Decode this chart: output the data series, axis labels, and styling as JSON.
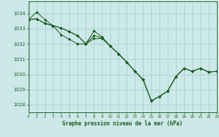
{
  "title": "Graphe pression niveau de la mer (hPa)",
  "bg_color": "#cce8e8",
  "grid_color": "#99cccc",
  "line_color": "#1a5c1a",
  "marker_color": "#1a5c1a",
  "x_ticks": [
    0,
    1,
    2,
    3,
    4,
    5,
    6,
    7,
    8,
    9,
    10,
    11,
    12,
    13,
    14,
    15,
    16,
    17,
    18,
    19,
    20,
    21,
    22,
    23
  ],
  "ylim": [
    1027.5,
    1034.8
  ],
  "xlim": [
    0,
    23
  ],
  "yticks": [
    1028,
    1029,
    1030,
    1031,
    1032,
    1033,
    1034
  ],
  "series1": [
    1033.6,
    1034.1,
    1033.6,
    1033.2,
    1032.6,
    1032.3,
    1032.0,
    1032.0,
    1032.55,
    1032.4,
    1031.85,
    1031.35,
    1030.8,
    1030.2,
    1029.65,
    1028.25,
    1028.55,
    1028.9,
    1029.85,
    1030.4,
    1030.2,
    1030.4,
    1030.15,
    1030.2
  ],
  "series2": [
    1033.6,
    1033.65,
    1033.35,
    1033.2,
    1033.05,
    1032.8,
    1032.55,
    1032.0,
    1032.85,
    1032.45,
    1031.85,
    1031.35,
    1030.8,
    1030.2,
    1029.65,
    1028.25,
    1028.55,
    1028.9,
    1029.85,
    1030.4,
    1030.2,
    1030.4,
    1030.15,
    1030.2
  ],
  "series3": [
    1033.6,
    1033.65,
    1033.35,
    1033.2,
    1033.05,
    1032.8,
    1032.55,
    1032.0,
    1032.35,
    1032.35,
    1031.85,
    1031.35,
    1030.8,
    1030.2,
    1029.65,
    1028.25,
    1028.55,
    1028.9,
    1029.85,
    1030.4,
    1030.2,
    1030.4,
    1030.15,
    1030.2
  ]
}
